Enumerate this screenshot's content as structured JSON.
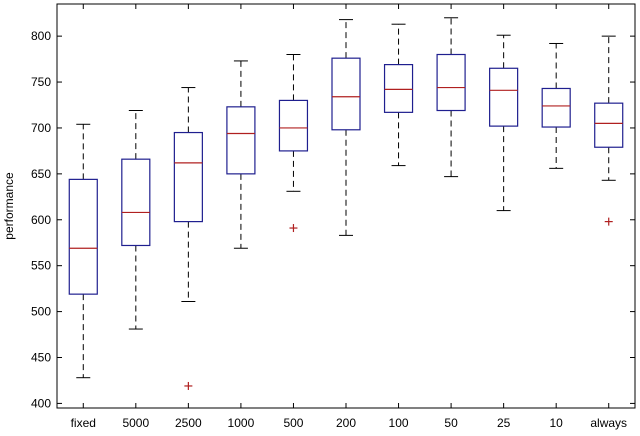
{
  "chart_data": {
    "type": "boxplot",
    "ylabel": "performance",
    "ylim": [
      395,
      835
    ],
    "yticks": [
      400,
      450,
      500,
      550,
      600,
      650,
      700,
      750,
      800
    ],
    "grid": false,
    "categories": [
      "fixed",
      "5000",
      "2500",
      "1000",
      "500",
      "200",
      "100",
      "50",
      "25",
      "10",
      "always"
    ],
    "boxes": [
      {
        "whisker_low": 428,
        "q1": 519,
        "median": 569,
        "q3": 644,
        "whisker_high": 704,
        "outliers": []
      },
      {
        "whisker_low": 481,
        "q1": 572,
        "median": 608,
        "q3": 666,
        "whisker_high": 719,
        "outliers": []
      },
      {
        "whisker_low": 511,
        "q1": 598,
        "median": 662,
        "q3": 695,
        "whisker_high": 744,
        "outliers": [
          419
        ]
      },
      {
        "whisker_low": 569,
        "q1": 650,
        "median": 694,
        "q3": 723,
        "whisker_high": 773,
        "outliers": []
      },
      {
        "whisker_low": 631,
        "q1": 675,
        "median": 700,
        "q3": 730,
        "whisker_high": 780,
        "outliers": [
          591
        ]
      },
      {
        "whisker_low": 583,
        "q1": 698,
        "median": 734,
        "q3": 776,
        "whisker_high": 818,
        "outliers": []
      },
      {
        "whisker_low": 659,
        "q1": 717,
        "median": 742,
        "q3": 769,
        "whisker_high": 813,
        "outliers": []
      },
      {
        "whisker_low": 647,
        "q1": 719,
        "median": 744,
        "q3": 780,
        "whisker_high": 820,
        "outliers": []
      },
      {
        "whisker_low": 610,
        "q1": 702,
        "median": 741,
        "q3": 765,
        "whisker_high": 801,
        "outliers": []
      },
      {
        "whisker_low": 656,
        "q1": 701,
        "median": 724,
        "q3": 743,
        "whisker_high": 792,
        "outliers": []
      },
      {
        "whisker_low": 643,
        "q1": 679,
        "median": 705,
        "q3": 727,
        "whisker_high": 800,
        "outliers": [
          598
        ]
      }
    ],
    "colors": {
      "box": "#1f1f8f",
      "median": "#b02020",
      "whisker": "#000000",
      "outlier": "#b02020",
      "axis": "#000000"
    }
  }
}
